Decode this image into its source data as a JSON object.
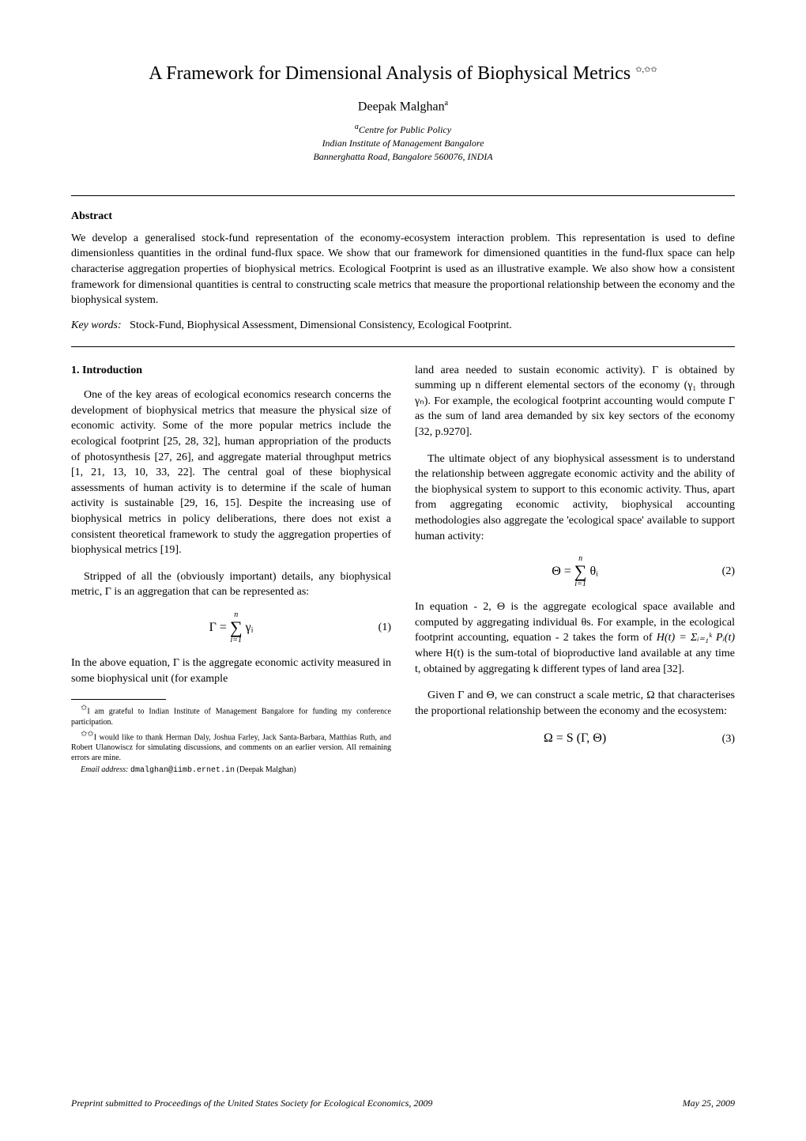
{
  "title": "A Framework for Dimensional Analysis of Biophysical Metrics",
  "title_marks": "✩,✩✩",
  "author": "Deepak Malghan",
  "author_sup": "a",
  "affiliation_sup": "a",
  "affiliation_line1": "Centre for Public Policy",
  "affiliation_line2": "Indian Institute of Management Bangalore",
  "affiliation_line3": "Bannerghatta Road, Bangalore 560076, INDIA",
  "abstract_heading": "Abstract",
  "abstract_text": "We develop a generalised stock-fund representation of the economy-ecosystem interaction problem. This representation is used to define dimensionless quantities in the ordinal fund-flux space. We show that our framework for dimensioned quantities in the fund-flux space can help characterise aggregation properties of biophysical metrics. Ecological Footprint is used as an illustrative example. We also show how a consistent framework for dimensional quantities is central to constructing scale metrics that measure the proportional relationship between the economy and the biophysical system.",
  "keywords_label": "Key words:",
  "keywords_text": "Stock-Fund, Biophysical Assessment, Dimensional Consistency, Ecological Footprint.",
  "section1_heading": "1. Introduction",
  "col_left": {
    "p1": "One of the key areas of ecological economics research concerns the development of biophysical metrics that measure the physical size of economic activity. Some of the more popular metrics include the ecological footprint [25, 28, 32], human appropriation of the products of photosynthesis [27, 26], and aggregate material throughput metrics [1, 21, 13, 10, 33, 22]. The central goal of these biophysical assessments of human activity is to determine if the scale of human activity is sustainable [29, 16, 15]. Despite the increasing use of biophysical metrics in policy deliberations, there does not exist a consistent theoretical framework to study the aggregation properties of biophysical metrics [19].",
    "p2": "Stripped of all the (obviously important) details, any biophysical metric, Γ is an aggregation that can be represented as:",
    "eq1_lhs": "Γ =",
    "eq1_sum_top": "n",
    "eq1_sum_bot": "i=1",
    "eq1_rhs": "γᵢ",
    "eq1_num": "(1)",
    "p3": "In the above equation, Γ is the aggregate economic activity measured in some biophysical unit (for example",
    "fn1_mark": "✩",
    "fn1": "I am grateful to Indian Institute of Management Bangalore for funding my conference participation.",
    "fn2_mark": "✩✩",
    "fn2": "I would like to thank Herman Daly, Joshua Farley, Jack Santa-Barbara, Matthias Ruth, and Robert Ulanowiscz for simulating discussions, and comments on an earlier version. All remaining errors are mine.",
    "fn3_label": "Email address:",
    "fn3_email": "dmalghan@iimb.ernet.in",
    "fn3_name": "(Deepak Malghan)"
  },
  "col_right": {
    "p1": "land area needed to sustain economic activity). Γ is obtained by summing up n different elemental sectors of the economy (γ₁ through γₙ). For example, the ecological footprint accounting would compute Γ as the sum of land area demanded by six key sectors of the economy [32, p.9270].",
    "p2": "The ultimate object of any biophysical assessment is to understand the relationship between aggregate economic activity and the ability of the biophysical system to support to this economic activity. Thus, apart from aggregating economic activity, biophysical accounting methodologies also aggregate the 'ecological space' available to support human activity:",
    "eq2_lhs": "Θ =",
    "eq2_sum_top": "n",
    "eq2_sum_bot": "i=1",
    "eq2_rhs": "θᵢ",
    "eq2_num": "(2)",
    "p3_a": "In equation - 2, Θ is the aggregate ecological space available and computed by aggregating individual θs. For example, in the ecological footprint accounting, equation - 2 takes the form of ",
    "p3_eq_inline": "H(t) = Σᵢ₌₁ᵏ Pᵢ(t)",
    "p3_b": " where H(t) is the sum-total of bioproductive land available at any time t, obtained by aggregating k different types of land area [32].",
    "p4": "Given Γ and Θ, we can construct a scale metric, Ω that characterises the proportional relationship between the economy and the ecosystem:",
    "eq3": "Ω = S (Γ, Θ)",
    "eq3_num": "(3)"
  },
  "preprint_left": "Preprint submitted to Proceedings of the United States Society for Ecological Economics, 2009",
  "preprint_right": "May 25, 2009",
  "style": {
    "background_color": "#ffffff",
    "text_color": "#000000",
    "title_fontsize": 24,
    "author_fontsize": 16,
    "affiliation_fontsize": 12,
    "body_fontsize": 14,
    "footnote_fontsize": 10,
    "preprint_fontsize": 12,
    "font_family": "Times New Roman"
  }
}
